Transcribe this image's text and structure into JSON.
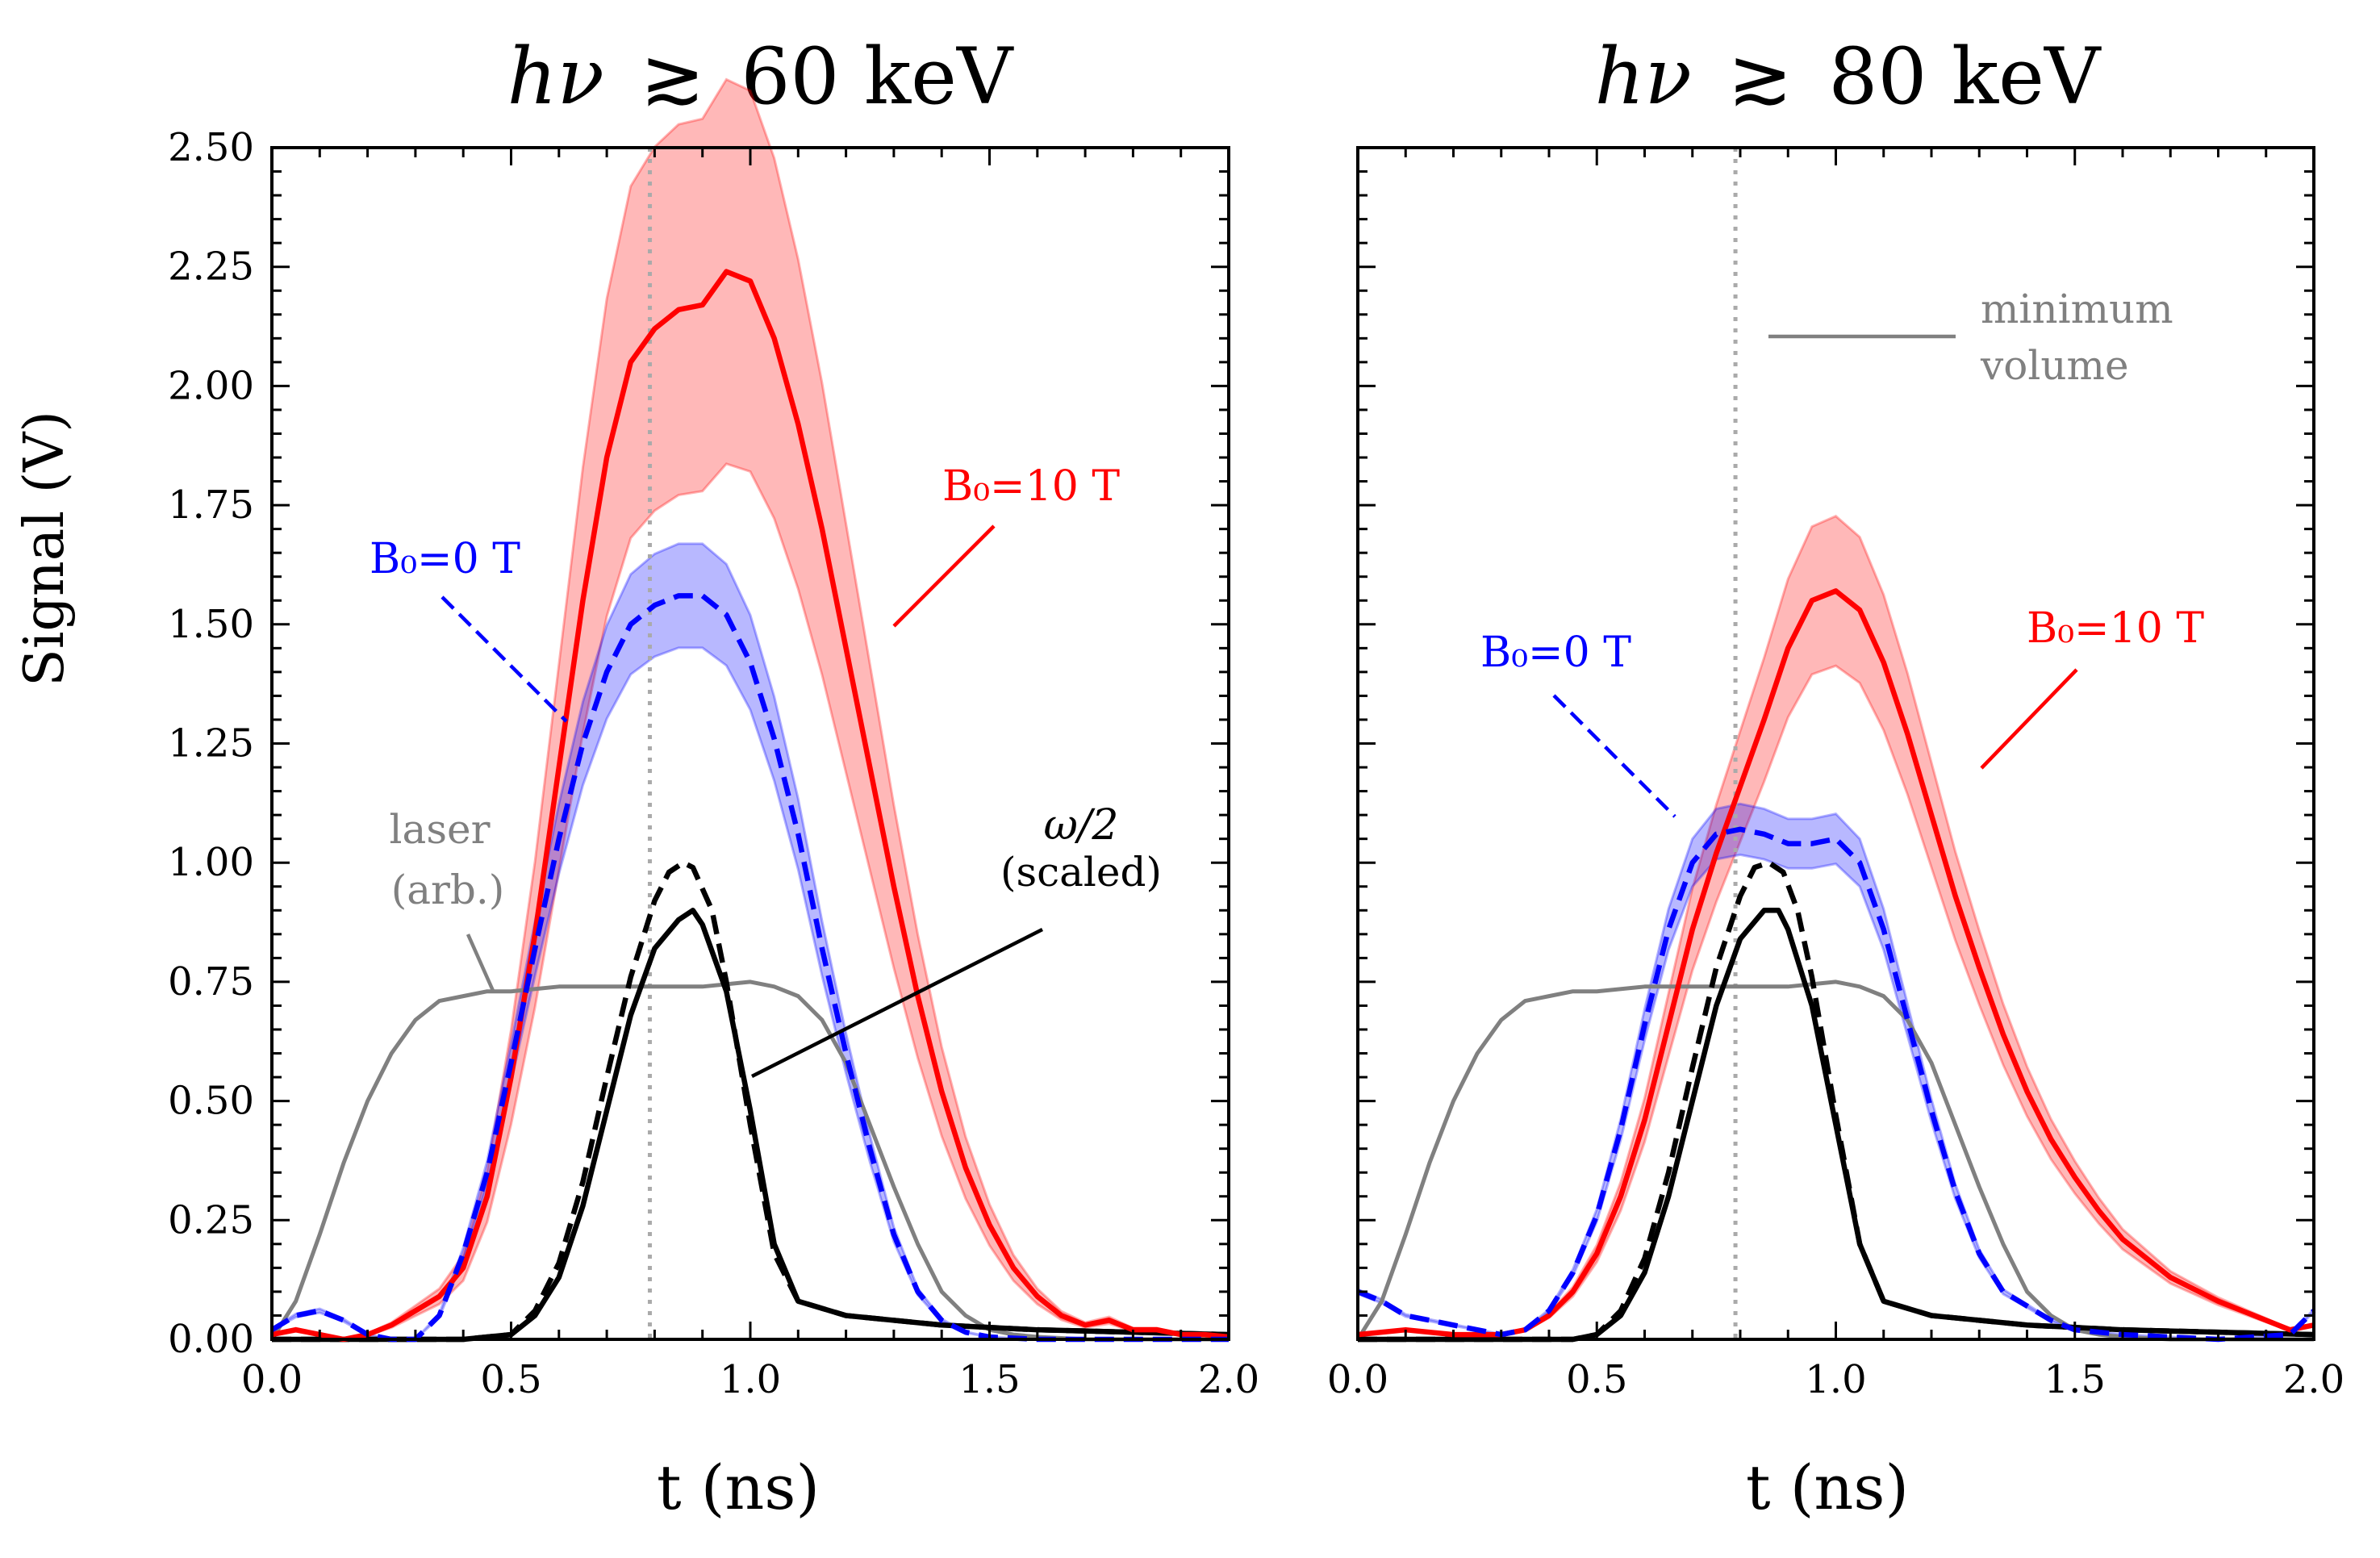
{
  "figure": {
    "ylabel": "Signal (V)"
  },
  "chart_data": [
    {
      "type": "line",
      "title_prefix": "hν",
      "title_suffix": "60 keV",
      "title_symbol": "≳",
      "xlabel": "t (ns)",
      "ylabel": "Signal (V)",
      "xlim": [
        0,
        2
      ],
      "ylim": [
        0,
        2.5
      ],
      "x_ticks": [
        "0.0",
        "0.5",
        "1.0",
        "1.5",
        "2.0"
      ],
      "y_ticks": [
        "0.00",
        "0.25",
        "0.50",
        "0.75",
        "1.00",
        "1.25",
        "1.50",
        "1.75",
        "2.00",
        "2.25",
        "2.50"
      ],
      "vline_x": 0.79,
      "series": [
        {
          "name": "laser (arb.)",
          "color": "#808080",
          "style": "solid",
          "x": [
            0,
            0.05,
            0.1,
            0.15,
            0.2,
            0.25,
            0.3,
            0.35,
            0.4,
            0.45,
            0.5,
            0.6,
            0.7,
            0.8,
            0.9,
            1.0,
            1.05,
            1.1,
            1.15,
            1.2,
            1.25,
            1.3,
            1.35,
            1.4,
            1.45,
            1.5,
            1.55,
            1.6,
            1.7,
            1.8,
            2.0
          ],
          "y": [
            0,
            0.08,
            0.22,
            0.37,
            0.5,
            0.6,
            0.67,
            0.71,
            0.72,
            0.73,
            0.73,
            0.74,
            0.74,
            0.74,
            0.74,
            0.75,
            0.74,
            0.72,
            0.67,
            0.58,
            0.45,
            0.32,
            0.2,
            0.1,
            0.05,
            0.02,
            0.01,
            0.005,
            0,
            0,
            0
          ]
        },
        {
          "name": "B0=10 T",
          "color": "#ff0000",
          "style": "solid",
          "x": [
            0,
            0.05,
            0.1,
            0.15,
            0.2,
            0.25,
            0.3,
            0.35,
            0.4,
            0.45,
            0.5,
            0.55,
            0.6,
            0.65,
            0.7,
            0.75,
            0.8,
            0.85,
            0.9,
            0.95,
            1.0,
            1.05,
            1.1,
            1.15,
            1.2,
            1.25,
            1.3,
            1.35,
            1.4,
            1.45,
            1.5,
            1.55,
            1.6,
            1.65,
            1.7,
            1.75,
            1.8,
            1.85,
            1.9,
            1.95,
            2.0
          ],
          "y": [
            0.01,
            0.02,
            0.01,
            0.0,
            0.01,
            0.03,
            0.06,
            0.09,
            0.15,
            0.3,
            0.55,
            0.85,
            1.2,
            1.55,
            1.85,
            2.05,
            2.12,
            2.16,
            2.17,
            2.24,
            2.22,
            2.1,
            1.92,
            1.7,
            1.45,
            1.2,
            0.95,
            0.72,
            0.52,
            0.36,
            0.24,
            0.15,
            0.09,
            0.05,
            0.03,
            0.04,
            0.02,
            0.02,
            0.01,
            0.01,
            0.005
          ],
          "band": 0.18
        },
        {
          "name": "B0=0 T",
          "color": "#0000ff",
          "style": "dashed",
          "x": [
            0,
            0.05,
            0.1,
            0.15,
            0.2,
            0.25,
            0.3,
            0.35,
            0.4,
            0.45,
            0.5,
            0.55,
            0.6,
            0.65,
            0.7,
            0.75,
            0.8,
            0.85,
            0.9,
            0.95,
            1.0,
            1.05,
            1.1,
            1.15,
            1.2,
            1.25,
            1.3,
            1.35,
            1.4,
            1.45,
            1.5,
            1.6,
            1.8,
            2.0
          ],
          "y": [
            0.02,
            0.05,
            0.06,
            0.04,
            0.01,
            0.0,
            0.0,
            0.05,
            0.18,
            0.35,
            0.58,
            0.82,
            1.05,
            1.25,
            1.4,
            1.5,
            1.54,
            1.56,
            1.56,
            1.52,
            1.42,
            1.26,
            1.06,
            0.82,
            0.6,
            0.4,
            0.22,
            0.1,
            0.04,
            0.015,
            0.005,
            0,
            0,
            0
          ],
          "band": 0.07
        },
        {
          "name": "ω/2 B0=10 T",
          "color": "#000000",
          "style": "solid",
          "x": [
            0,
            0.4,
            0.5,
            0.55,
            0.6,
            0.65,
            0.7,
            0.75,
            0.8,
            0.85,
            0.88,
            0.9,
            0.95,
            1.0,
            1.05,
            1.1,
            1.2,
            1.4,
            1.6,
            2.0
          ],
          "y": [
            0,
            0,
            0.01,
            0.05,
            0.13,
            0.28,
            0.48,
            0.68,
            0.82,
            0.88,
            0.9,
            0.87,
            0.73,
            0.48,
            0.2,
            0.08,
            0.05,
            0.03,
            0.02,
            0.01
          ]
        },
        {
          "name": "ω/2 B0=0 T",
          "color": "#000000",
          "style": "dashed",
          "x": [
            0,
            0.4,
            0.5,
            0.55,
            0.6,
            0.65,
            0.7,
            0.75,
            0.8,
            0.83,
            0.86,
            0.88,
            0.92,
            0.95,
            1.0,
            1.05,
            1.1,
            1.2,
            1.4,
            1.6,
            2.0
          ],
          "y": [
            0,
            0,
            0.01,
            0.06,
            0.16,
            0.33,
            0.55,
            0.76,
            0.92,
            0.98,
            1.0,
            0.99,
            0.9,
            0.75,
            0.45,
            0.18,
            0.08,
            0.05,
            0.03,
            0.02,
            0.01
          ]
        }
      ],
      "annotations": {
        "b10": "B₀=10 T",
        "b0": "B₀=0 T",
        "laser_line1": "laser",
        "laser_line2": "(arb.)",
        "omega_line1": "ω/2",
        "omega_line2": "(scaled)"
      }
    },
    {
      "type": "line",
      "title_prefix": "hν",
      "title_suffix": "80 keV",
      "title_symbol": "≳",
      "xlabel": "t (ns)",
      "xlim": [
        0,
        2
      ],
      "ylim": [
        0,
        2.5
      ],
      "x_ticks": [
        "0.0",
        "0.5",
        "1.0",
        "1.5",
        "2.0"
      ],
      "vline_x": 0.79,
      "series": [
        {
          "name": "laser (arb.)",
          "color": "#808080",
          "style": "solid",
          "x": [
            0,
            0.05,
            0.1,
            0.15,
            0.2,
            0.25,
            0.3,
            0.35,
            0.4,
            0.45,
            0.5,
            0.6,
            0.7,
            0.8,
            0.9,
            1.0,
            1.05,
            1.1,
            1.15,
            1.2,
            1.25,
            1.3,
            1.35,
            1.4,
            1.45,
            1.5,
            1.55,
            1.6,
            1.7,
            1.8,
            2.0
          ],
          "y": [
            0,
            0.08,
            0.22,
            0.37,
            0.5,
            0.6,
            0.67,
            0.71,
            0.72,
            0.73,
            0.73,
            0.74,
            0.74,
            0.74,
            0.74,
            0.75,
            0.74,
            0.72,
            0.67,
            0.58,
            0.45,
            0.32,
            0.2,
            0.1,
            0.05,
            0.02,
            0.01,
            0.005,
            0,
            0,
            0
          ]
        },
        {
          "name": "B0=10 T",
          "color": "#ff0000",
          "style": "solid",
          "x": [
            0,
            0.1,
            0.2,
            0.3,
            0.35,
            0.4,
            0.45,
            0.5,
            0.55,
            0.6,
            0.65,
            0.7,
            0.75,
            0.8,
            0.85,
            0.9,
            0.95,
            1.0,
            1.05,
            1.1,
            1.15,
            1.2,
            1.25,
            1.3,
            1.35,
            1.4,
            1.45,
            1.5,
            1.55,
            1.6,
            1.7,
            1.8,
            1.9,
            1.95,
            2.0
          ],
          "y": [
            0.01,
            0.02,
            0.01,
            0.01,
            0.02,
            0.05,
            0.1,
            0.18,
            0.3,
            0.46,
            0.66,
            0.86,
            1.02,
            1.16,
            1.3,
            1.45,
            1.55,
            1.57,
            1.53,
            1.42,
            1.27,
            1.1,
            0.93,
            0.78,
            0.64,
            0.52,
            0.42,
            0.34,
            0.27,
            0.21,
            0.13,
            0.08,
            0.04,
            0.02,
            0.03
          ],
          "band": 0.1
        },
        {
          "name": "B0=0 T",
          "color": "#0000ff",
          "style": "dashed",
          "x": [
            0,
            0.05,
            0.1,
            0.2,
            0.3,
            0.35,
            0.4,
            0.45,
            0.5,
            0.55,
            0.6,
            0.65,
            0.7,
            0.75,
            0.8,
            0.85,
            0.9,
            0.95,
            1.0,
            1.05,
            1.1,
            1.15,
            1.2,
            1.25,
            1.3,
            1.35,
            1.4,
            1.45,
            1.5,
            1.6,
            1.8,
            1.95,
            2.0
          ],
          "y": [
            0.1,
            0.08,
            0.05,
            0.03,
            0.01,
            0.02,
            0.06,
            0.14,
            0.26,
            0.44,
            0.66,
            0.86,
            1.0,
            1.06,
            1.07,
            1.06,
            1.04,
            1.04,
            1.05,
            1.0,
            0.86,
            0.67,
            0.48,
            0.31,
            0.18,
            0.1,
            0.07,
            0.04,
            0.02,
            0.01,
            0,
            0.01,
            0.06
          ],
          "band": 0.05
        },
        {
          "name": "ω/2 B0=10 T",
          "color": "#000000",
          "style": "solid",
          "x": [
            0,
            0.45,
            0.5,
            0.55,
            0.6,
            0.65,
            0.7,
            0.75,
            0.8,
            0.85,
            0.88,
            0.9,
            0.95,
            1.0,
            1.05,
            1.1,
            1.2,
            1.4,
            1.6,
            2.0
          ],
          "y": [
            0,
            0,
            0.01,
            0.05,
            0.14,
            0.3,
            0.5,
            0.7,
            0.84,
            0.9,
            0.9,
            0.86,
            0.7,
            0.45,
            0.2,
            0.08,
            0.05,
            0.03,
            0.02,
            0.01
          ]
        },
        {
          "name": "ω/2 B0=0 T",
          "color": "#000000",
          "style": "dashed",
          "x": [
            0,
            0.45,
            0.5,
            0.55,
            0.6,
            0.65,
            0.7,
            0.75,
            0.8,
            0.83,
            0.86,
            0.89,
            0.92,
            0.95,
            1.0,
            1.05,
            1.1,
            1.2,
            1.4,
            1.6,
            2.0
          ],
          "y": [
            0,
            0,
            0.01,
            0.06,
            0.17,
            0.35,
            0.57,
            0.78,
            0.93,
            0.99,
            1.0,
            0.98,
            0.9,
            0.76,
            0.47,
            0.2,
            0.08,
            0.05,
            0.03,
            0.02,
            0.01
          ]
        }
      ],
      "annotations": {
        "b10": "B₀=10 T",
        "b0": "B₀=0 T",
        "minvol_line1": "minimum",
        "minvol_line2": "volume"
      }
    }
  ]
}
